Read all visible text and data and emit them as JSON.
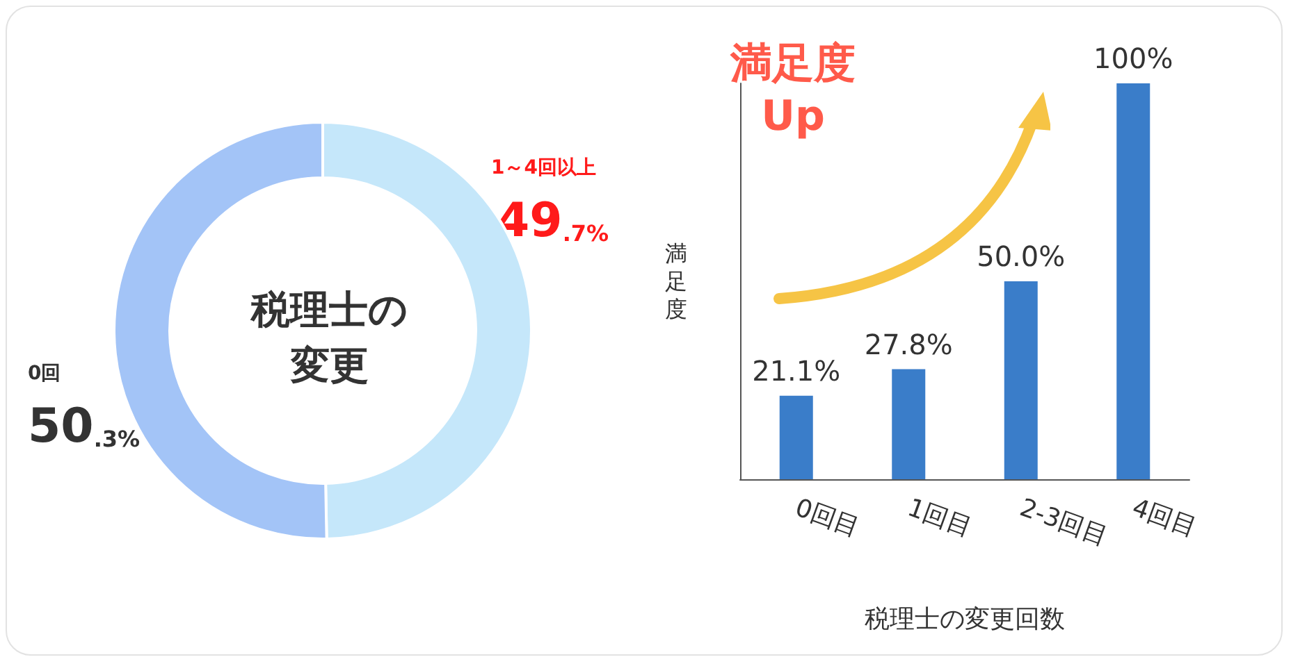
{
  "chart_data": [
    {
      "type": "donut",
      "title": "税理士の変更",
      "categories": [
        "1～4回以上",
        "0回"
      ],
      "values": [
        49.7,
        50.3
      ],
      "value_labels": [
        "49.7%",
        "50.3%"
      ],
      "colors": [
        "#c5e7fa",
        "#a3c4f7"
      ]
    },
    {
      "type": "bar",
      "title": "満足度\nUp",
      "categories": [
        "0回目",
        "1回目",
        "2-3回目",
        "4回目"
      ],
      "values": [
        21.1,
        27.8,
        50.0,
        100
      ],
      "value_labels": [
        "21.1%",
        "27.8%",
        "50.0%",
        "100%"
      ],
      "color": "#3a7dc9",
      "xlabel": "税理士の変更回数",
      "ylabel": "満足度",
      "tick_labels": "x"
    }
  ]
}
